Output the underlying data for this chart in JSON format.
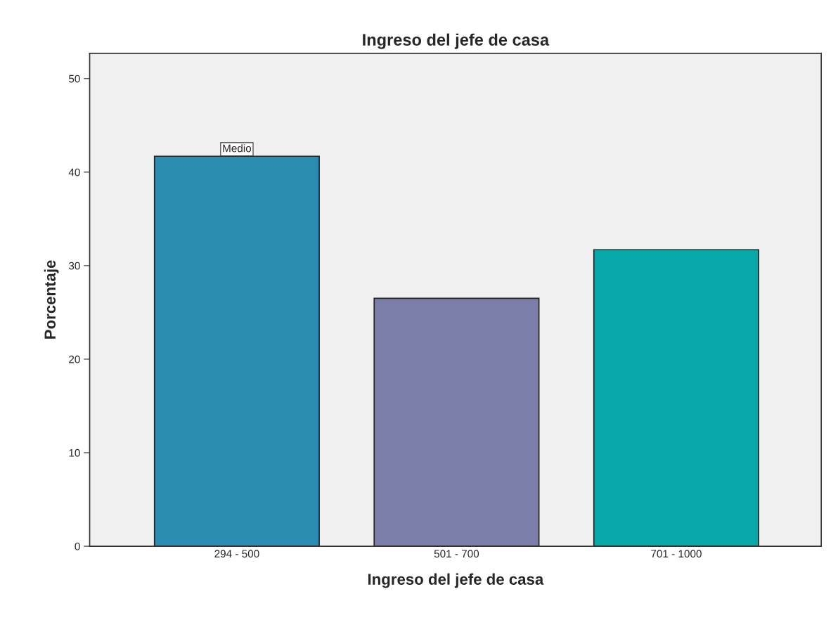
{
  "chart_data": {
    "type": "bar",
    "title": "Ingreso del jefe de casa",
    "xlabel": "Ingreso del jefe de casa",
    "ylabel": "Porcentaje",
    "categories": [
      "294 - 500",
      "501 - 700",
      "701 - 1000"
    ],
    "values": [
      41.7,
      26.5,
      31.7
    ],
    "colors": [
      "#2a8cb0",
      "#7c7eaa",
      "#08a8a8"
    ],
    "ylim": [
      0,
      52.7
    ],
    "yticks": [
      0,
      10,
      20,
      30,
      40,
      50
    ],
    "grid": false,
    "legend": false,
    "annotations": [
      {
        "text": "Medio",
        "x": "294 - 500",
        "y": 41.7
      }
    ]
  }
}
